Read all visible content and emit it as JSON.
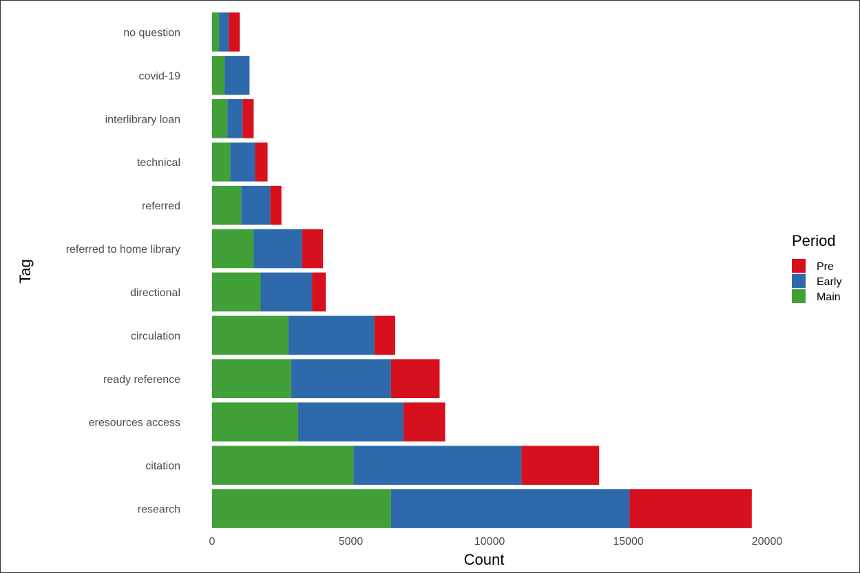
{
  "chart_data": {
    "type": "bar",
    "orientation": "horizontal",
    "stacked": true,
    "title": "",
    "xlabel": "Count",
    "ylabel": "Tag",
    "xlim": [
      0,
      20000
    ],
    "xticks": [
      0,
      5000,
      10000,
      15000,
      20000
    ],
    "grid": false,
    "legend": {
      "title": "Period",
      "placement": "right",
      "entries": [
        "Pre",
        "Early",
        "Main"
      ]
    },
    "categories": [
      "no question",
      "covid-19",
      "interlibrary loan",
      "technical",
      "referred",
      "referred to home library",
      "directional",
      "circulation",
      "ready reference",
      "eresources access",
      "citation",
      "research"
    ],
    "series": [
      {
        "name": "Main",
        "color": "#41a038",
        "values": [
          250,
          450,
          550,
          650,
          1050,
          1500,
          1750,
          2750,
          2850,
          3100,
          5100,
          6450
        ]
      },
      {
        "name": "Early",
        "color": "#2e6aab",
        "values": [
          350,
          900,
          550,
          900,
          1050,
          1750,
          1850,
          3100,
          3600,
          3800,
          6050,
          8600
        ]
      },
      {
        "name": "Pre",
        "color": "#d7101e",
        "values": [
          400,
          0,
          400,
          450,
          400,
          750,
          500,
          750,
          1750,
          1500,
          2800,
          4400
        ]
      }
    ]
  }
}
